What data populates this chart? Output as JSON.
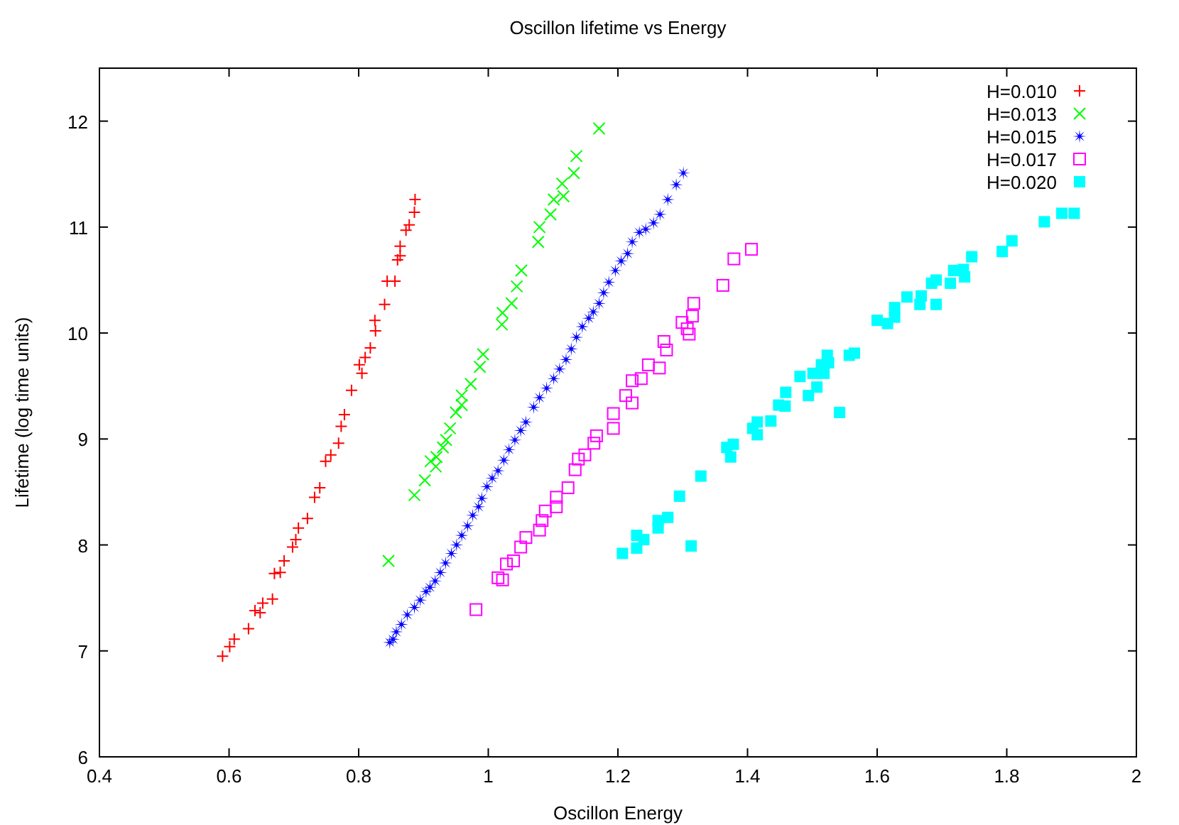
{
  "chart_data": {
    "type": "scatter",
    "title": "Oscillon lifetime vs Energy",
    "xlabel": "Oscillon Energy",
    "ylabel": "Lifetime (log time units)",
    "xlim": [
      0.4,
      2
    ],
    "xticks": [
      0.4,
      0.6,
      0.8,
      1,
      1.2,
      1.4,
      1.6,
      1.8,
      2
    ],
    "ylim": [
      6,
      12.5
    ],
    "yticks": [
      6,
      7,
      8,
      9,
      10,
      11,
      12
    ],
    "grid": false,
    "legend": "top right",
    "series": [
      {
        "name": "H=0.010",
        "color": "#ff0000",
        "marker": "cross",
        "x": [
          0.887,
          0.886,
          0.878,
          0.873,
          0.864,
          0.864,
          0.86,
          0.844,
          0.856,
          0.84,
          0.825,
          0.826,
          0.818,
          0.81,
          0.801,
          0.805,
          0.789,
          0.778,
          0.773,
          0.769,
          0.757,
          0.749,
          0.74,
          0.732,
          0.721,
          0.707,
          0.703,
          0.698,
          0.685,
          0.679,
          0.67,
          0.667,
          0.652,
          0.64,
          0.648,
          0.63,
          0.608,
          0.601,
          0.59
        ],
        "values": [
          11.26,
          11.14,
          11.02,
          10.97,
          10.82,
          10.73,
          10.69,
          10.49,
          10.49,
          10.27,
          10.12,
          10.02,
          9.86,
          9.77,
          9.7,
          9.62,
          9.46,
          9.23,
          9.12,
          8.96,
          8.85,
          8.79,
          8.54,
          8.45,
          8.25,
          8.16,
          8.05,
          7.98,
          7.85,
          7.74,
          7.73,
          7.49,
          7.45,
          7.38,
          7.36,
          7.21,
          7.11,
          7.04,
          6.95
        ]
      },
      {
        "name": "H=0.013",
        "color": "#00ff00",
        "marker": "x",
        "x": [
          1.171,
          1.136,
          1.132,
          1.114,
          1.116,
          1.101,
          1.096,
          1.079,
          1.077,
          1.051,
          1.044,
          1.036,
          1.022,
          1.021,
          0.992,
          0.987,
          0.973,
          0.959,
          0.959,
          0.95,
          0.941,
          0.935,
          0.93,
          0.92,
          0.911,
          0.919,
          0.902,
          0.886,
          0.846
        ],
        "values": [
          11.93,
          11.67,
          11.51,
          11.41,
          11.29,
          11.26,
          11.12,
          11,
          10.86,
          10.59,
          10.44,
          10.28,
          10.19,
          10.08,
          9.8,
          9.68,
          9.52,
          9.41,
          9.32,
          9.25,
          9.1,
          8.99,
          8.92,
          8.83,
          8.79,
          8.74,
          8.61,
          8.47,
          7.85
        ]
      },
      {
        "name": "H=0.015",
        "color": "#0000ff",
        "marker": "star",
        "x": [
          1.301,
          1.29,
          1.277,
          1.265,
          1.255,
          1.243,
          1.233,
          1.222,
          1.215,
          1.205,
          1.196,
          1.186,
          1.178,
          1.171,
          1.162,
          1.155,
          1.145,
          1.136,
          1.128,
          1.12,
          1.11,
          1.101,
          1.09,
          1.079,
          1.07,
          1.058,
          1.05,
          1.041,
          1.032,
          1.024,
          1.015,
          1.006,
          0.998,
          0.99,
          0.985,
          0.976,
          0.968,
          0.959,
          0.951,
          0.943,
          0.934,
          0.926,
          0.918,
          0.91,
          0.904,
          0.895,
          0.886,
          0.875,
          0.866,
          0.858,
          0.853,
          0.848
        ],
        "values": [
          11.51,
          11.4,
          11.26,
          11.12,
          11.04,
          10.98,
          10.95,
          10.86,
          10.75,
          10.68,
          10.59,
          10.48,
          10.38,
          10.28,
          10.2,
          10.14,
          10.06,
          9.96,
          9.85,
          9.75,
          9.66,
          9.57,
          9.48,
          9.39,
          9.3,
          9.16,
          9.08,
          8.99,
          8.9,
          8.8,
          8.7,
          8.63,
          8.55,
          8.44,
          8.36,
          8.28,
          8.18,
          8.09,
          8.0,
          7.92,
          7.83,
          7.74,
          7.66,
          7.6,
          7.56,
          7.48,
          7.41,
          7.34,
          7.25,
          7.18,
          7.11,
          7.08
        ]
      },
      {
        "name": "H=0.017",
        "color": "#ff00ff",
        "marker": "square",
        "x": [
          1.406,
          1.379,
          1.362,
          1.317,
          1.315,
          1.299,
          1.31,
          1.307,
          1.271,
          1.275,
          1.247,
          1.264,
          1.236,
          1.222,
          1.212,
          1.222,
          1.193,
          1.193,
          1.167,
          1.163,
          1.149,
          1.139,
          1.134,
          1.123,
          1.105,
          1.105,
          1.088,
          1.083,
          1.079,
          1.058,
          1.05,
          1.039,
          1.028,
          1.015,
          1.022,
          0.981
        ],
        "values": [
          10.79,
          10.7,
          10.45,
          10.28,
          10.16,
          10.1,
          9.99,
          10.04,
          9.92,
          9.84,
          9.7,
          9.67,
          9.57,
          9.55,
          9.41,
          9.34,
          9.24,
          9.1,
          9.03,
          8.96,
          8.85,
          8.81,
          8.71,
          8.54,
          8.45,
          8.36,
          8.32,
          8.23,
          8.14,
          8.07,
          7.98,
          7.85,
          7.82,
          7.69,
          7.67,
          7.39
        ]
      },
      {
        "name": "H=0.020",
        "color": "#00ffff",
        "marker": "square-filled",
        "x": [
          1.904,
          1.885,
          1.858,
          1.808,
          1.793,
          1.746,
          1.733,
          1.718,
          1.735,
          1.713,
          1.691,
          1.684,
          1.691,
          1.668,
          1.666,
          1.646,
          1.627,
          1.627,
          1.616,
          1.6,
          1.565,
          1.557,
          1.542,
          1.523,
          1.525,
          1.514,
          1.501,
          1.518,
          1.507,
          1.481,
          1.494,
          1.459,
          1.458,
          1.448,
          1.436,
          1.415,
          1.408,
          1.415,
          1.378,
          1.368,
          1.374,
          1.328,
          1.295,
          1.277,
          1.262,
          1.262,
          1.24,
          1.229,
          1.229,
          1.313,
          1.207
        ],
        "values": [
          11.13,
          11.13,
          11.05,
          10.87,
          10.77,
          10.72,
          10.6,
          10.59,
          10.53,
          10.47,
          10.5,
          10.47,
          10.27,
          10.35,
          10.27,
          10.34,
          10.24,
          10.15,
          10.09,
          10.12,
          9.81,
          9.79,
          9.25,
          9.79,
          9.72,
          9.7,
          9.62,
          9.62,
          9.49,
          9.59,
          9.41,
          9.44,
          9.31,
          9.32,
          9.17,
          9.16,
          9.1,
          9.04,
          8.95,
          8.92,
          8.83,
          8.65,
          8.46,
          8.26,
          8.23,
          8.16,
          8.05,
          8.09,
          7.97,
          7.99,
          7.92
        ]
      }
    ]
  }
}
